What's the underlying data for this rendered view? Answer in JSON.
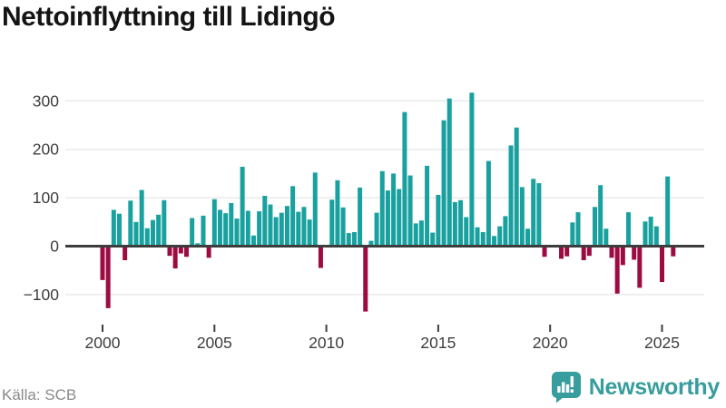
{
  "header": {
    "title": "Nettoinflyttning till Lidingö"
  },
  "footer": {
    "source": "Källa: SCB",
    "brand": "Newsworthy"
  },
  "colors": {
    "positive": "#18a19f",
    "negative": "#9c0b41",
    "grid": "#eaeaea",
    "axis": "#3d3d3d",
    "tick_text": "#3d3d3d",
    "muted_text": "#898989",
    "brand": "#379d9d"
  },
  "chart_data": {
    "type": "bar",
    "title": "Nettoinflyttning till Lidingö",
    "start": "2000-Q1",
    "end": "2025-Q3",
    "frequency": "quarterly",
    "values": [
      -70,
      -128,
      75,
      67,
      -29,
      94,
      50,
      116,
      37,
      54,
      65,
      95,
      -20,
      -46,
      -15,
      -22,
      58,
      6,
      63,
      -24,
      97,
      75,
      68,
      89,
      57,
      164,
      73,
      22,
      72,
      104,
      86,
      60,
      69,
      83,
      124,
      71,
      81,
      55,
      152,
      -45,
      0,
      96,
      136,
      80,
      27,
      29,
      121,
      -135,
      11,
      69,
      155,
      115,
      150,
      118,
      277,
      146,
      47,
      53,
      166,
      28,
      106,
      260,
      305,
      91,
      95,
      60,
      317,
      39,
      29,
      176,
      21,
      41,
      62,
      208,
      245,
      122,
      36,
      139,
      130,
      -22,
      0,
      0,
      -26,
      -21,
      49,
      70,
      -29,
      -20,
      81,
      126,
      36,
      -24,
      -98,
      -39,
      70,
      -28,
      -86,
      51,
      61,
      41,
      -74,
      144,
      -21
    ],
    "y_ticks": [
      300,
      200,
      100,
      0,
      -100
    ],
    "x_tick_years": [
      2000,
      2005,
      2010,
      2015,
      2020,
      2025
    ],
    "ylim": [
      -160,
      345
    ],
    "grid": true,
    "legend": false
  }
}
